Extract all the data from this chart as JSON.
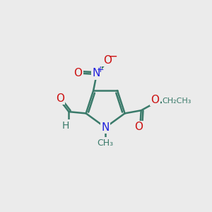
{
  "bg": "#ebebeb",
  "bond_color": "#3a7a6a",
  "bond_lw": 1.8,
  "colors": {
    "C": "#3a7a6a",
    "N": "#2222dd",
    "O": "#cc1111",
    "H": "#3a7a6a"
  },
  "figsize": [
    3.0,
    3.0
  ],
  "dpi": 100
}
